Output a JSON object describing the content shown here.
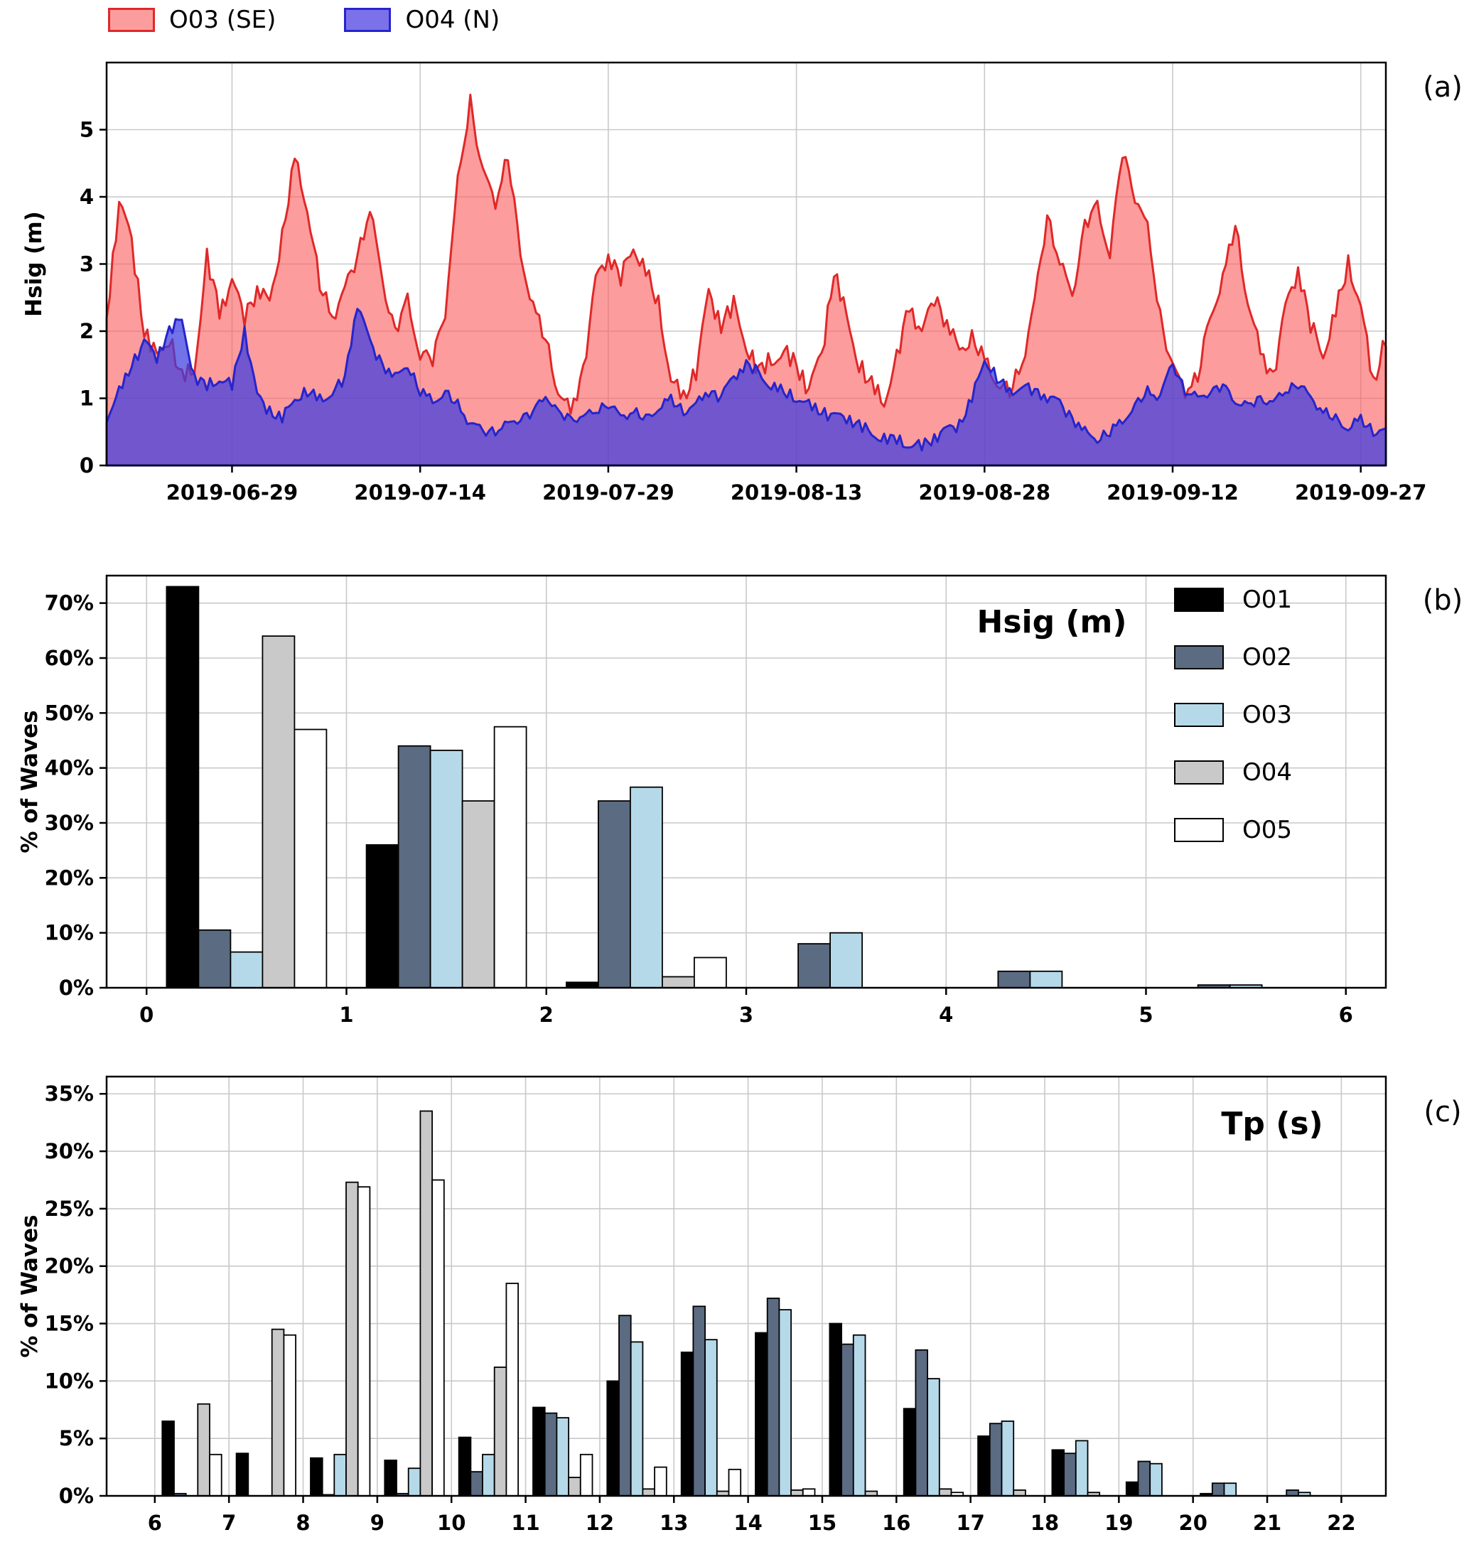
{
  "panel_labels": {
    "a": "(a)",
    "b": "(b)",
    "c": "(c)"
  },
  "colors": {
    "grid": "#c9c9c9",
    "o03_se": {
      "fill": "#fa5f5f",
      "fill_opacity": 0.62,
      "line": "#e02828",
      "legend_fill": "#fb9d9d"
    },
    "o04_n": {
      "fill": "#3b3be0",
      "fill_opacity": 0.72,
      "line": "#2525cc",
      "legend_fill": "#7b72ea"
    },
    "series": {
      "O01": "#000000",
      "O02": "#5a6b82",
      "O03": "#b5d9e9",
      "O04": "#c9c9c9",
      "O05": "#ffffff"
    }
  },
  "chart_data": [
    {
      "id": "timeseries_hsig",
      "type": "area",
      "ylabel": "Hsig (m)",
      "ylim": [
        0,
        6
      ],
      "yticks": [
        0,
        1,
        2,
        3,
        4,
        5
      ],
      "x_tick_labels": [
        "2019-06-29",
        "2019-07-14",
        "2019-07-29",
        "2019-08-13",
        "2019-08-28",
        "2019-09-12",
        "2019-09-27"
      ],
      "x_tick_indices": [
        10,
        25,
        40,
        55,
        70,
        85,
        100
      ],
      "legend_position": "above left",
      "series": [
        {
          "name": "O03 (SE)",
          "values": [
            2.2,
            3.9,
            3.3,
            2.0,
            1.6,
            1.9,
            1.3,
            1.5,
            3.1,
            2.3,
            2.7,
            2.2,
            2.6,
            2.4,
            3.4,
            4.6,
            3.9,
            2.7,
            2.2,
            2.6,
            3.1,
            3.8,
            2.7,
            2.0,
            2.5,
            1.7,
            1.6,
            2.3,
            4.2,
            5.4,
            4.3,
            3.9,
            4.6,
            3.2,
            2.4,
            1.9,
            1.1,
            0.8,
            1.4,
            2.7,
            3.1,
            2.8,
            3.3,
            2.9,
            2.4,
            1.3,
            1.0,
            1.4,
            2.5,
            2.1,
            2.4,
            1.8,
            1.4,
            1.6,
            1.7,
            1.5,
            1.1,
            1.6,
            2.9,
            2.2,
            1.5,
            1.2,
            1.0,
            1.6,
            2.4,
            1.9,
            2.5,
            2.1,
            1.7,
            1.9,
            1.6,
            1.3,
            1.1,
            1.5,
            2.4,
            3.7,
            3.0,
            2.5,
            3.6,
            3.9,
            3.2,
            4.7,
            4.0,
            3.5,
            2.2,
            1.4,
            1.1,
            1.3,
            2.3,
            2.8,
            3.6,
            2.4,
            1.7,
            1.3,
            2.3,
            2.9,
            2.1,
            1.7,
            2.3,
            3.0,
            2.4,
            1.2,
            1.9
          ]
        },
        {
          "name": "O04 (N)",
          "values": [
            0.7,
            1.1,
            1.5,
            1.8,
            1.6,
            2.0,
            2.2,
            1.3,
            1.2,
            1.3,
            1.2,
            2.0,
            1.0,
            0.8,
            0.7,
            1.0,
            1.1,
            1.0,
            1.1,
            1.3,
            2.4,
            1.8,
            1.5,
            1.3,
            1.5,
            1.1,
            1.0,
            1.1,
            0.9,
            0.6,
            0.5,
            0.5,
            0.6,
            0.7,
            0.8,
            1.1,
            0.8,
            0.7,
            0.7,
            0.8,
            0.9,
            0.7,
            0.8,
            0.7,
            0.9,
            1.0,
            0.8,
            0.9,
            1.1,
            1.0,
            1.3,
            1.5,
            1.4,
            1.2,
            1.1,
            1.0,
            0.9,
            0.8,
            0.7,
            0.7,
            0.6,
            0.5,
            0.4,
            0.4,
            0.3,
            0.3,
            0.4,
            0.5,
            0.6,
            1.0,
            1.6,
            1.3,
            1.1,
            1.2,
            1.1,
            1.0,
            0.9,
            0.7,
            0.5,
            0.4,
            0.5,
            0.7,
            0.9,
            1.1,
            1.0,
            1.5,
            1.1,
            1.0,
            1.1,
            1.2,
            1.0,
            0.9,
            1.0,
            0.9,
            1.1,
            1.2,
            1.0,
            0.8,
            0.7,
            0.6,
            0.7,
            0.5,
            0.5
          ]
        }
      ]
    },
    {
      "id": "hist_hsig",
      "type": "bar",
      "title": "Hsig (m)",
      "ylabel": "% of Waves",
      "ylim": [
        0,
        75
      ],
      "yticks": [
        0,
        10,
        20,
        30,
        40,
        50,
        60,
        70
      ],
      "ytick_labels": [
        "0%",
        "10%",
        "20%",
        "30%",
        "40%",
        "50%",
        "60%",
        "70%"
      ],
      "xticks": [
        0,
        1,
        2,
        3,
        4,
        5,
        6
      ],
      "xlim": [
        -0.2,
        6.2
      ],
      "bin_edges": [
        0,
        1,
        2,
        3,
        4,
        5,
        6
      ],
      "legend_position": "upper right",
      "series": [
        {
          "name": "O01",
          "values": [
            73,
            26,
            1,
            0,
            0,
            0
          ]
        },
        {
          "name": "O02",
          "values": [
            10.5,
            44,
            34,
            8,
            3,
            0.5
          ]
        },
        {
          "name": "O03",
          "values": [
            6.5,
            43.2,
            36.5,
            10,
            3,
            0.5
          ]
        },
        {
          "name": "O04",
          "values": [
            64,
            34,
            2,
            0,
            0,
            0
          ]
        },
        {
          "name": "O05",
          "values": [
            47,
            47.5,
            5.5,
            0,
            0,
            0
          ]
        }
      ]
    },
    {
      "id": "hist_tp",
      "type": "bar",
      "title": "Tp (s)",
      "ylabel": "% of Waves",
      "ylim": [
        0,
        36.5
      ],
      "yticks": [
        0,
        5,
        10,
        15,
        20,
        25,
        30,
        35
      ],
      "ytick_labels": [
        "0%",
        "5%",
        "10%",
        "15%",
        "20%",
        "25%",
        "30%",
        "35%"
      ],
      "xticks": [
        6,
        7,
        8,
        9,
        10,
        11,
        12,
        13,
        14,
        15,
        16,
        17,
        18,
        19,
        20,
        21,
        22
      ],
      "xlim": [
        5.35,
        22.6
      ],
      "bin_edges": [
        6,
        7,
        8,
        9,
        10,
        11,
        12,
        13,
        14,
        15,
        16,
        17,
        18,
        19,
        20,
        21,
        22
      ],
      "series": [
        {
          "name": "O01",
          "values": [
            6.5,
            3.7,
            3.3,
            3.1,
            5.1,
            7.7,
            10.0,
            12.5,
            14.2,
            15.0,
            7.6,
            5.2,
            4.0,
            1.2,
            0.2,
            0
          ]
        },
        {
          "name": "O02",
          "values": [
            0.2,
            0,
            0.1,
            0.2,
            2.1,
            7.2,
            15.7,
            16.5,
            17.2,
            13.2,
            12.7,
            6.3,
            3.7,
            3.0,
            1.1,
            0.5
          ]
        },
        {
          "name": "O03",
          "values": [
            0,
            0,
            3.6,
            2.4,
            3.6,
            6.8,
            13.4,
            13.6,
            16.2,
            14.0,
            10.2,
            6.5,
            4.8,
            2.8,
            1.1,
            0.3
          ]
        },
        {
          "name": "O04",
          "values": [
            8.0,
            14.5,
            27.3,
            33.5,
            11.2,
            1.6,
            0.6,
            0.4,
            0.5,
            0.4,
            0.6,
            0.5,
            0.3,
            0,
            0,
            0
          ]
        },
        {
          "name": "O05",
          "values": [
            3.6,
            14.0,
            26.9,
            27.5,
            18.5,
            3.6,
            2.5,
            2.3,
            0.6,
            0,
            0.3,
            0,
            0,
            0,
            0,
            0
          ]
        }
      ]
    }
  ]
}
